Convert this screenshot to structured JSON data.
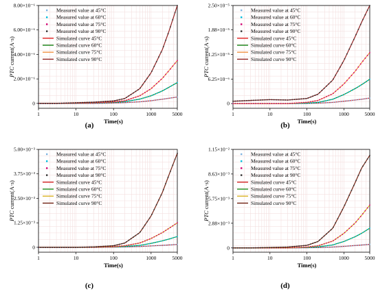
{
  "legend": {
    "measured_45": "Measured value at 45°C",
    "measured_60": "Measured value at 60°C",
    "measured_75": "Measured value at 75°C",
    "measured_90": "Measured value at 90°C",
    "sim_45": "Simulated curve 45°C",
    "sim_60": "Simulated curve 60°C",
    "sim_75": "Simulated curve 75°C",
    "sim_90": "Simulated curve 90°C"
  },
  "colors": {
    "background": "#ffffff",
    "grid_minor": "#f2dada",
    "measured_45": "#7fb3e0",
    "measured_60": "#00c0e0",
    "measured_75": "#d00070",
    "measured_90": "#303030",
    "panel_a_sim": [
      "#e02020",
      "#108010",
      "#f09040",
      "#902020"
    ],
    "panel_b_sim": [
      "#e02020",
      "#108010",
      "#f09040",
      "#902020"
    ],
    "panel_c_sim": [
      "#d02020",
      "#209020",
      "#d8b020",
      "#702010"
    ],
    "panel_d_sim": [
      "#d02020",
      "#209020",
      "#d8b020",
      "#702010"
    ]
  },
  "chart_data": [
    {
      "panel": "(a)",
      "type": "line",
      "xscale": "log",
      "xlim": [
        1,
        5000
      ],
      "xticks": [
        "1",
        "10",
        "100",
        "1000",
        "5000"
      ],
      "xlabel": "Time(s)",
      "ylabel": "PTC current(A·s)",
      "ylim": [
        -4e-07,
        8e-06
      ],
      "yticks": [
        "0",
        "2.00×10⁻⁶",
        "4.00×10⁻⁶",
        "6.00×10⁻⁶",
        "8.00×10⁻⁶"
      ],
      "ytick_values": [
        0,
        2e-06,
        4e-06,
        6e-06,
        8e-06
      ],
      "x": [
        1,
        3,
        10,
        30,
        100,
        200,
        500,
        1000,
        2000,
        3000,
        5000
      ],
      "series": [
        {
          "name": "45°C",
          "values": [
            0,
            0,
            0,
            0,
            3e-08,
            6e-08,
            1.3e-07,
            2.2e-07,
            3.4e-07,
            4.2e-07,
            5.2e-07
          ]
        },
        {
          "name": "60°C",
          "values": [
            0,
            0,
            2e-08,
            4e-08,
            8e-08,
            1.4e-07,
            3.5e-07,
            6.2e-07,
            1.02e-06,
            1.32e-06,
            1.7e-06
          ]
        },
        {
          "name": "75°C",
          "values": [
            0,
            0,
            3e-08,
            6e-08,
            1.2e-07,
            2.2e-07,
            6.2e-07,
            1.2e-06,
            2.05e-06,
            2.68e-06,
            3.5e-06
          ]
        },
        {
          "name": "90°C",
          "values": [
            0,
            0,
            5e-08,
            1e-07,
            2e-07,
            4e-07,
            1.2e-06,
            2.5e-06,
            4.4e-06,
            5.9e-06,
            8e-06
          ]
        }
      ]
    },
    {
      "panel": "(b)",
      "type": "line",
      "xscale": "log",
      "xlim": [
        1,
        5000
      ],
      "xticks": [
        "1",
        "10",
        "100",
        "1000",
        "5000"
      ],
      "xlabel": "Time(s)",
      "ylabel": "PTC current(A·s)",
      "ylim": [
        -1.2e-06,
        2.5e-05
      ],
      "yticks": [
        "0",
        "6.25×10⁻⁶",
        "1.25×10⁻⁵",
        "1.88×10⁻⁵",
        "2.50×10⁻⁵"
      ],
      "ytick_values": [
        0,
        6.25e-06,
        1.25e-05,
        1.88e-05,
        2.5e-05
      ],
      "x": [
        1,
        3,
        10,
        30,
        100,
        200,
        500,
        1000,
        2000,
        3000,
        5000
      ],
      "series": [
        {
          "name": "45°C",
          "values": [
            0,
            0,
            0,
            0,
            5e-08,
            1e-07,
            3e-07,
            6e-07,
            9e-07,
            1.1e-06,
            1.4e-06
          ]
        },
        {
          "name": "60°C",
          "values": [
            0,
            0,
            0,
            0,
            1e-07,
            3e-07,
            1.1e-06,
            2.3e-06,
            3.8e-06,
            4.8e-06,
            6.2e-06
          ]
        },
        {
          "name": "75°C",
          "values": [
            0,
            0,
            0,
            0,
            3e-07,
            8e-07,
            2.5e-06,
            5e-06,
            8.2e-06,
            1.04e-05,
            1.3e-05
          ]
        },
        {
          "name": "90°C",
          "values": [
            6e-07,
            8e-07,
            1e-06,
            9e-07,
            1.3e-06,
            2.4e-06,
            6e-06,
            1.1e-05,
            1.7e-05,
            2.07e-05,
            2.5e-05
          ]
        }
      ]
    },
    {
      "panel": "(c)",
      "type": "line",
      "xscale": "log",
      "xlim": [
        1,
        5000
      ],
      "xticks": [
        "1",
        "10",
        "100",
        "1000",
        "5000"
      ],
      "xlabel": "Time(s)",
      "ylabel": "PTC current(A·s)",
      "ylim": [
        -0.00025,
        0.005
      ],
      "yticks": [
        "0",
        "1.25×10⁻³",
        "2.50×10⁻³",
        "3.75×10⁻³",
        "5.00×10⁻³"
      ],
      "ytick_values": [
        0,
        0.00125,
        0.0025,
        0.00375,
        0.005
      ],
      "x": [
        1,
        3,
        10,
        30,
        100,
        200,
        500,
        1000,
        2000,
        3000,
        5000
      ],
      "series": [
        {
          "name": "45°C",
          "values": [
            0,
            0,
            0,
            0,
            1e-05,
            2e-05,
            4e-05,
            7e-05,
            0.0001,
            0.00012,
            0.00015
          ]
        },
        {
          "name": "60°C",
          "values": [
            0,
            0,
            0,
            0,
            2e-05,
            4e-05,
            0.0001,
            0.0002,
            0.00033,
            0.00042,
            0.00055
          ]
        },
        {
          "name": "75°C",
          "values": [
            0,
            0,
            0,
            0,
            3e-05,
            8e-05,
            0.00022,
            0.00045,
            0.00075,
            0.00097,
            0.00125
          ]
        },
        {
          "name": "90°C",
          "values": [
            0,
            0,
            0,
            2e-05,
            8e-05,
            0.00022,
            0.00075,
            0.0016,
            0.0028,
            0.0037,
            0.0048
          ]
        }
      ]
    },
    {
      "panel": "(d)",
      "type": "line",
      "xscale": "log",
      "xlim": [
        1,
        5000
      ],
      "xticks": [
        "1",
        "10",
        "100",
        "1000",
        "5000"
      ],
      "xlabel": "Time(s)",
      "ylabel": "PTC current(A·s)",
      "ylim": [
        -0.0005,
        0.0115
      ],
      "yticks": [
        "0",
        "2.88×10⁻³",
        "5.75×10⁻³",
        "8.63×10⁻³",
        "1.15×10⁻²"
      ],
      "ytick_values": [
        0,
        0.00288,
        0.00575,
        0.00863,
        0.0115
      ],
      "x": [
        1,
        3,
        10,
        30,
        100,
        200,
        500,
        1000,
        2000,
        3000,
        5000
      ],
      "series": [
        {
          "name": "45°C",
          "values": [
            0,
            0,
            0,
            0,
            2e-05,
            4e-05,
            0.0001,
            0.00018,
            0.00028,
            0.00034,
            0.00042
          ]
        },
        {
          "name": "60°C",
          "values": [
            0,
            0,
            0,
            0,
            5e-05,
            0.00012,
            0.00035,
            0.00075,
            0.0013,
            0.0017,
            0.0023
          ]
        },
        {
          "name": "75°C",
          "values": [
            0,
            0,
            0,
            0,
            0.0001,
            0.00025,
            0.0008,
            0.0017,
            0.0029,
            0.0038,
            0.005
          ]
        },
        {
          "name": "90°C",
          "values": [
            0,
            0,
            5e-05,
            0.0001,
            0.0003,
            0.00075,
            0.0023,
            0.0048,
            0.0076,
            0.0093,
            0.0108
          ]
        }
      ]
    }
  ]
}
